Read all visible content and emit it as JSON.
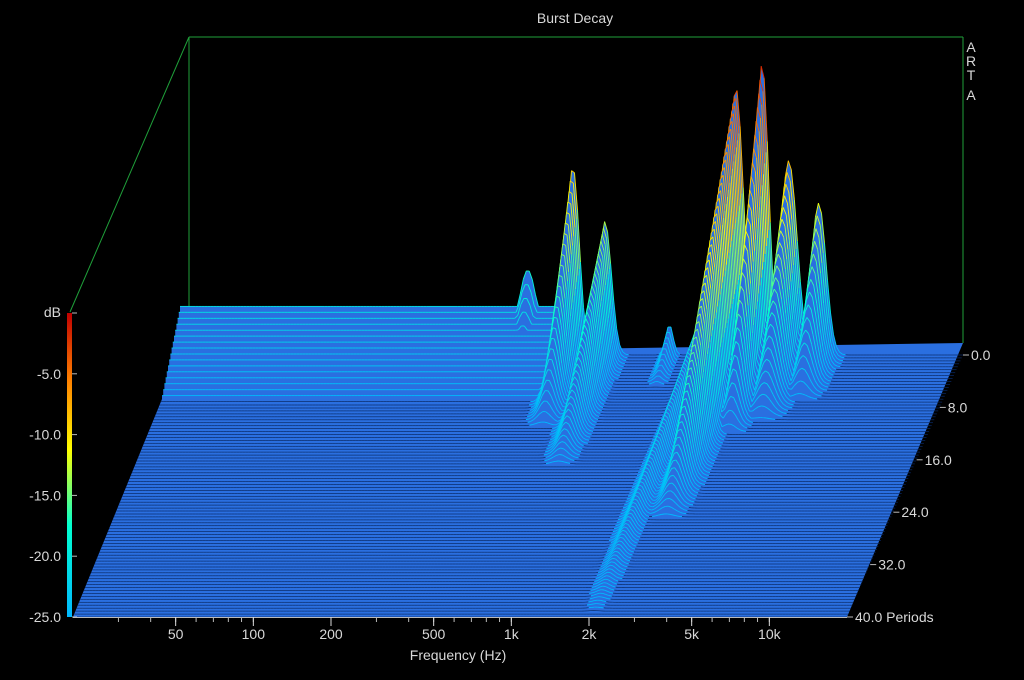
{
  "chart_data": {
    "type": "waterfall-3d",
    "title": "Burst Decay",
    "watermark": [
      "A",
      "R",
      "T",
      "A"
    ],
    "xlabel": "Frequency (Hz)",
    "x_scale": "log",
    "xlim": [
      20,
      20000
    ],
    "x_ticks": [
      {
        "value": 50,
        "label": "50"
      },
      {
        "value": 100,
        "label": "100"
      },
      {
        "value": 200,
        "label": "200"
      },
      {
        "value": 500,
        "label": "500"
      },
      {
        "value": 1000,
        "label": "1k"
      },
      {
        "value": 2000,
        "label": "2k"
      },
      {
        "value": 5000,
        "label": "5k"
      },
      {
        "value": 10000,
        "label": "10k"
      }
    ],
    "zlabel": "dB",
    "zlim": [
      -25,
      0
    ],
    "z_ticks": [
      {
        "value": 0,
        "label": ""
      },
      {
        "value": -5,
        "label": "-5.0"
      },
      {
        "value": -10,
        "label": "-10.0"
      },
      {
        "value": -15,
        "label": "-15.0"
      },
      {
        "value": -20,
        "label": "-20.0"
      },
      {
        "value": -25,
        "label": "-25.0"
      }
    ],
    "ylabel": "Periods",
    "ylim": [
      0,
      40
    ],
    "y_ticks": [
      {
        "value": 0,
        "label": "0.0"
      },
      {
        "value": 8,
        "label": "8.0"
      },
      {
        "value": 16,
        "label": "16.0"
      },
      {
        "value": 24,
        "label": "24.0"
      },
      {
        "value": 32,
        "label": "32.0"
      },
      {
        "value": 40,
        "label": "40.0 Periods"
      }
    ],
    "slice_count": 90,
    "floor_db": -25,
    "floor_color": "#2a6fe0",
    "colormap": [
      "#00b8ff",
      "#00ffd0",
      "#ffff00",
      "#ff8000",
      "#d00000"
    ],
    "baseline": {
      "level_db": -21,
      "decay_db_per_period": 0.55,
      "f_min": 20,
      "f_max": 800
    },
    "peaks": [
      {
        "freq": 430,
        "peak_db": -18.0,
        "decay_periods": 3.5,
        "log_width": 0.05
      },
      {
        "freq": 640,
        "peak_db": -9.5,
        "decay_periods": 11.0,
        "log_width": 0.035
      },
      {
        "freq": 850,
        "peak_db": -14.0,
        "decay_periods": 17.0,
        "log_width": 0.035
      },
      {
        "freq": 1500,
        "peak_db": -22.5,
        "decay_periods": 5.0,
        "log_width": 0.02
      },
      {
        "freq": 2050,
        "peak_db": -21.0,
        "decay_periods": 39.5,
        "log_width": 0.028
      },
      {
        "freq": 2700,
        "peak_db": -3.0,
        "decay_periods": 25.0,
        "log_width": 0.04
      },
      {
        "freq": 3400,
        "peak_db": -1.0,
        "decay_periods": 12.0,
        "log_width": 0.035
      },
      {
        "freq": 4300,
        "peak_db": -9.0,
        "decay_periods": 10.0,
        "log_width": 0.045
      },
      {
        "freq": 5600,
        "peak_db": -12.5,
        "decay_periods": 7.0,
        "log_width": 0.04
      }
    ]
  }
}
